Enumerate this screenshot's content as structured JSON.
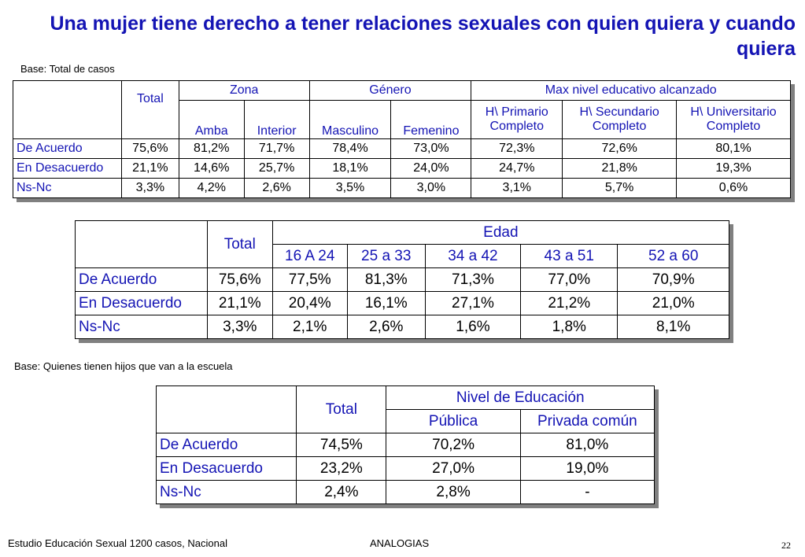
{
  "title": "Una mujer tiene derecho a tener relaciones sexuales con quien quiera y cuando quiera",
  "base1": "Base: Total de casos",
  "base2": "Base: Quienes tienen hijos que van a la escuela",
  "table1": {
    "total": "Total",
    "groups": {
      "zona": "Zona",
      "genero": "Género",
      "educ": "Max nivel educativo alcanzado"
    },
    "cols": {
      "amba": "Amba",
      "interior": "Interior",
      "masculino": "Masculino",
      "femenino": "Femenino",
      "prim1": "H\\ Primario",
      "prim2": "Completo",
      "sec1": "H\\ Secundario",
      "sec2": "Completo",
      "uni1": "H\\ Universitario",
      "uni2": "Completo"
    },
    "rows": [
      {
        "label": "De Acuerdo",
        "v": [
          "75,6%",
          "81,2%",
          "71,7%",
          "78,4%",
          "73,0%",
          "72,3%",
          "72,6%",
          "80,1%"
        ]
      },
      {
        "label": "En Desacuerdo",
        "v": [
          "21,1%",
          "14,6%",
          "25,7%",
          "18,1%",
          "24,0%",
          "24,7%",
          "21,8%",
          "19,3%"
        ]
      },
      {
        "label": "Ns-Nc",
        "v": [
          "3,3%",
          "4,2%",
          "2,6%",
          "3,5%",
          "3,0%",
          "3,1%",
          "5,7%",
          "0,6%"
        ]
      }
    ]
  },
  "table2": {
    "total": "Total",
    "group": "Edad",
    "cols": [
      "16 A 24",
      "25 a 33",
      "34 a 42",
      "43 a 51",
      "52 a 60"
    ],
    "rows": [
      {
        "label": "De Acuerdo",
        "v": [
          "75,6%",
          "77,5%",
          "81,3%",
          "71,3%",
          "77,0%",
          "70,9%"
        ]
      },
      {
        "label": "En Desacuerdo",
        "v": [
          "21,1%",
          "20,4%",
          "16,1%",
          "27,1%",
          "21,2%",
          "21,0%"
        ]
      },
      {
        "label": "Ns-Nc",
        "v": [
          "3,3%",
          "2,1%",
          "2,6%",
          "1,6%",
          "1,8%",
          "8,1%"
        ]
      }
    ]
  },
  "table3": {
    "total": "Total",
    "group": "Nivel de Educación",
    "cols": [
      "Pública",
      "Privada común"
    ],
    "rows": [
      {
        "label": "De Acuerdo",
        "v": [
          "74,5%",
          "70,2%",
          "81,0%"
        ]
      },
      {
        "label": "En Desacuerdo",
        "v": [
          "23,2%",
          "27,0%",
          "19,0%"
        ]
      },
      {
        "label": "Ns-Nc",
        "v": [
          "2,4%",
          "2,8%",
          "-"
        ]
      }
    ]
  },
  "footer": {
    "left": "Estudio Educación Sexual 1200 casos, Nacional",
    "center": "ANALOGIAS",
    "page": "22"
  }
}
